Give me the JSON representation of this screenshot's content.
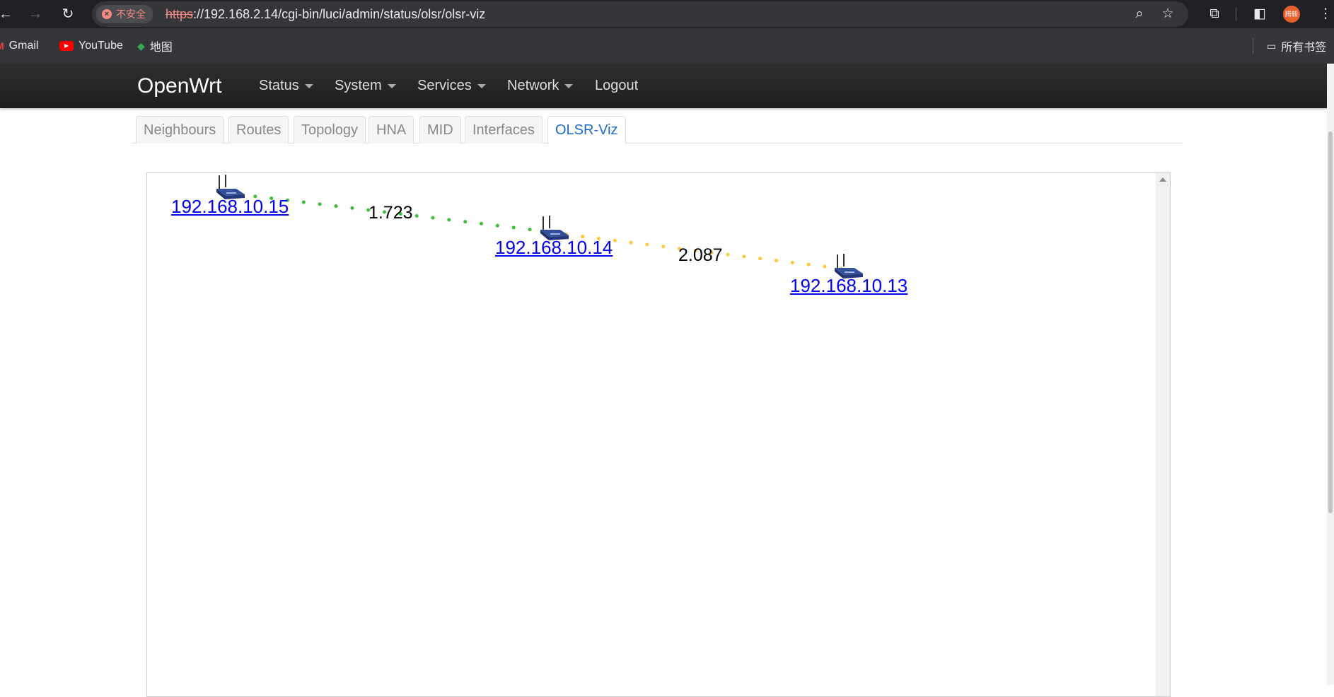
{
  "browser": {
    "security_label": "不安全",
    "url_scheme": "https",
    "url_rest": "://192.168.2.14/cgi-bin/luci/admin/status/olsr/olsr-viz",
    "profile_label": "腾毅",
    "bookmarks": [
      {
        "label": "Gmail",
        "icon": "gmail-icon"
      },
      {
        "label": "YouTube",
        "icon": "youtube-icon"
      },
      {
        "label": "地图",
        "icon": "maps-icon"
      }
    ],
    "all_bookmarks_label": "所有书签"
  },
  "app": {
    "brand": "OpenWrt",
    "menu": [
      {
        "label": "Status",
        "dropdown": true
      },
      {
        "label": "System",
        "dropdown": true
      },
      {
        "label": "Services",
        "dropdown": true
      },
      {
        "label": "Network",
        "dropdown": true
      },
      {
        "label": "Logout",
        "dropdown": false
      }
    ],
    "tabs": [
      {
        "label": "Neighbours",
        "active": false
      },
      {
        "label": "Routes",
        "active": false
      },
      {
        "label": "Topology",
        "active": false
      },
      {
        "label": "HNA",
        "active": false
      },
      {
        "label": "MID",
        "active": false
      },
      {
        "label": "Interfaces",
        "active": false
      },
      {
        "label": "OLSR-Viz",
        "active": true
      }
    ]
  },
  "viz": {
    "nodes": [
      {
        "ip": "192.168.10.15",
        "icon": "router-icon"
      },
      {
        "ip": "192.168.10.14",
        "icon": "router-icon"
      },
      {
        "ip": "192.168.10.13",
        "icon": "router-icon"
      }
    ],
    "links": [
      {
        "from": "192.168.10.15",
        "to": "192.168.10.14",
        "cost": "1.723",
        "color": "#3cbe3c"
      },
      {
        "from": "192.168.10.14",
        "to": "192.168.10.13",
        "cost": "2.087",
        "color": "#ffc83c"
      }
    ]
  }
}
